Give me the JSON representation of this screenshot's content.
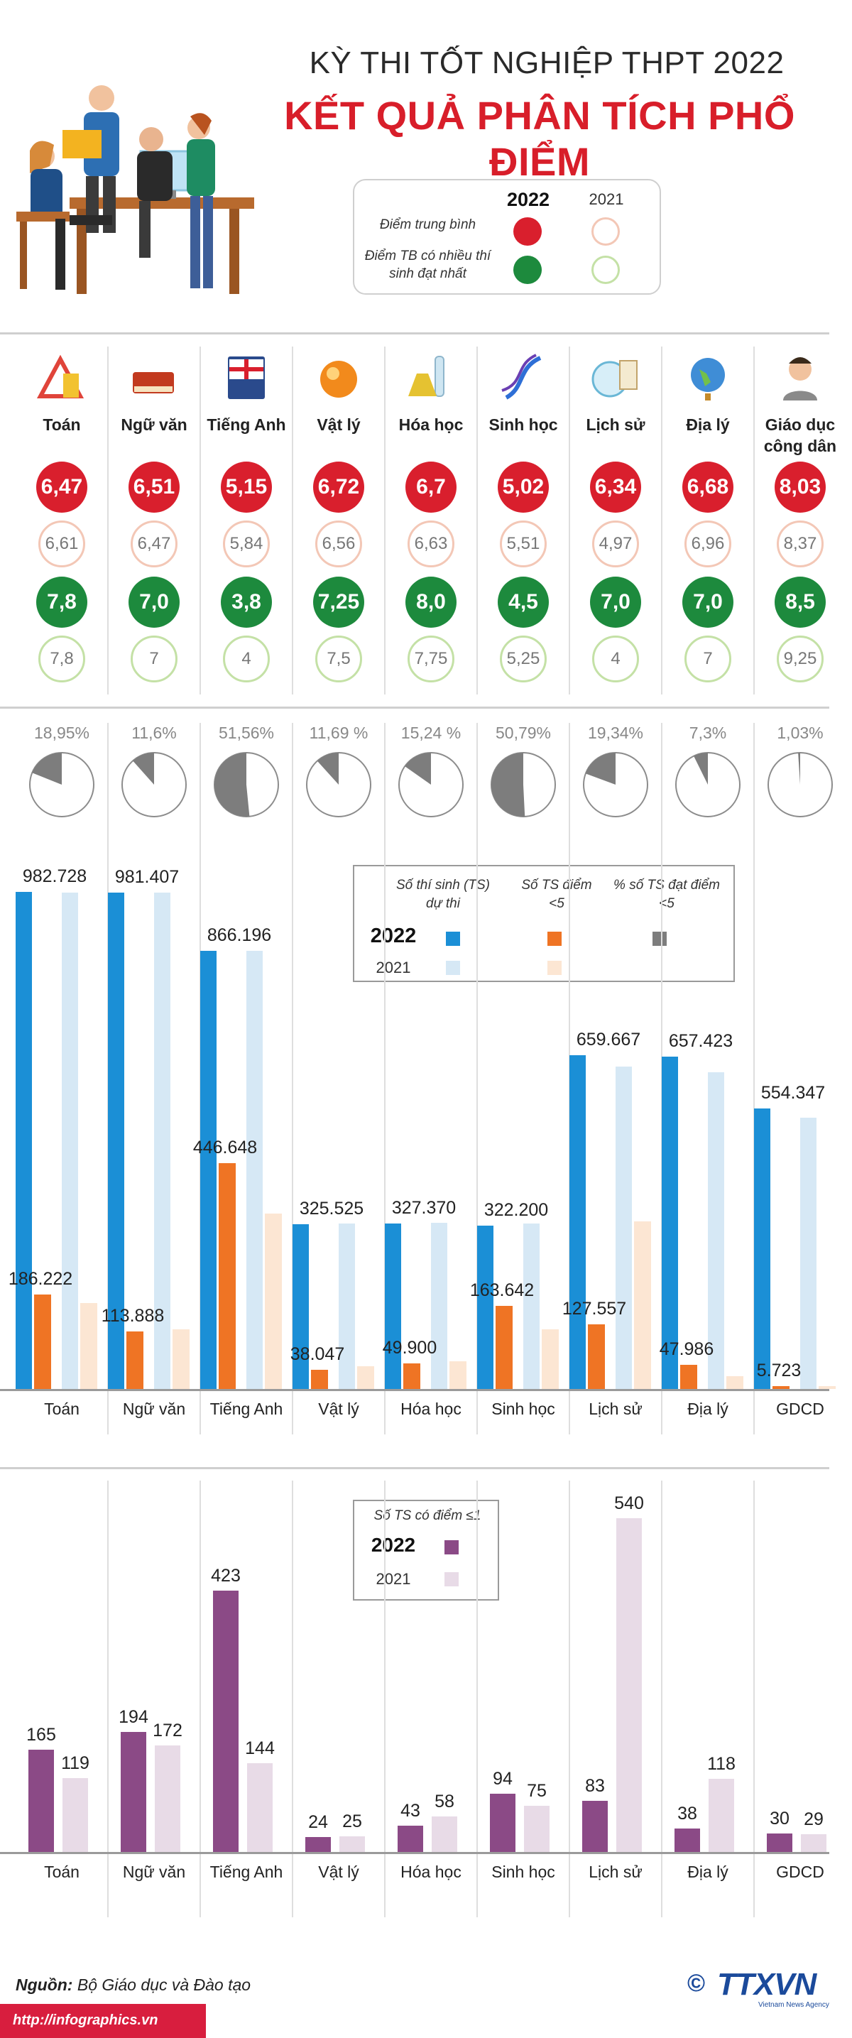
{
  "header": {
    "title_line1": "KỲ THI TỐT NGHIỆP THPT 2022",
    "title_line2": "KẾT QUẢ PHÂN TÍCH PHỔ ĐIỂM"
  },
  "legend_top": {
    "year_2022": "2022",
    "year_2021": "2021",
    "row1_label": "Điểm trung bình",
    "row2_label": "Điểm TB có nhiều thí sinh đạt nhất"
  },
  "colors": {
    "red": "#d91f2d",
    "green": "#1d8a3d",
    "blue": "#1b8fd6",
    "lightblue": "#d6e8f5",
    "orange": "#ef7424",
    "lightorange": "#fce6d3",
    "gray": "#7d7d7d",
    "purple": "#8b4a86",
    "lightpurple": "#e8dbe7"
  },
  "subjects": [
    {
      "name": "Toán",
      "icon": "ruler-triangle-icon"
    },
    {
      "name": "Ngữ văn",
      "icon": "book-icon"
    },
    {
      "name": "Tiếng Anh",
      "icon": "english-book-icon"
    },
    {
      "name": "Vật lý",
      "icon": "atom-sphere-icon"
    },
    {
      "name": "Hóa học",
      "icon": "flask-icon"
    },
    {
      "name": "Sinh học",
      "icon": "dna-icon"
    },
    {
      "name": "Lịch sử",
      "icon": "scroll-globe-icon"
    },
    {
      "name": "Địa lý",
      "icon": "globe-icon"
    },
    {
      "name": "Giáo dục công dân",
      "icon": "person-icon"
    }
  ],
  "avg_2022": [
    "6,47",
    "6,51",
    "5,15",
    "6,72",
    "6,7",
    "5,02",
    "6,34",
    "6,68",
    "8,03"
  ],
  "avg_2021": [
    "6,61",
    "6,47",
    "5,84",
    "6,56",
    "6,63",
    "5,51",
    "4,97",
    "6,96",
    "8,37"
  ],
  "mode_2022": [
    "7,8",
    "7,0",
    "3,8",
    "7,25",
    "8,0",
    "4,5",
    "7,0",
    "7,0",
    "8,5"
  ],
  "mode_2021": [
    "7,8",
    "7",
    "4",
    "7,5",
    "7,75",
    "5,25",
    "4",
    "7",
    "9,25"
  ],
  "pie_labels": [
    "18,95%",
    "11,6%",
    "51,56%",
    "11,69 %",
    "15,24 %",
    "50,79%",
    "19,34%",
    "7,3%",
    "1,03%"
  ],
  "pie_values": [
    18.95,
    11.6,
    51.56,
    11.69,
    15.24,
    50.79,
    19.34,
    7.3,
    1.03
  ],
  "legend_mid": {
    "col1": "Số thí sinh (TS) dự thi",
    "col2": "Số TS điểm <5",
    "col3": "% số TS đạt điểm <5",
    "year_2022": "2022",
    "year_2021": "2021"
  },
  "legend_bottom": {
    "title": "Số TS có điểm ≤1",
    "year_2022": "2022",
    "year_2021": "2021"
  },
  "chart_data": [
    {
      "type": "bar",
      "categories": [
        "Toán",
        "Ngữ văn",
        "Tiếng Anh",
        "Vật lý",
        "Hóa học",
        "Sinh học",
        "Lịch sử",
        "Địa lý",
        "GDCD"
      ],
      "series": [
        {
          "name": "Số thí sinh (TS) dự thi 2022",
          "values": [
            982728,
            981407,
            866196,
            325525,
            327370,
            322200,
            659667,
            657423,
            554347
          ],
          "labels": [
            "982.728",
            "981.407",
            "866.196",
            "325.525",
            "327.370",
            "322.200",
            "659.667",
            "657.423",
            "554.347"
          ]
        },
        {
          "name": "Số thí sinh (TS) dự thi 2021",
          "values": [
            982000,
            981000,
            866000,
            327000,
            328000,
            327000,
            637000,
            626000,
            536000
          ]
        },
        {
          "name": "Số TS điểm <5 2022",
          "values": [
            186222,
            113888,
            446648,
            38047,
            49900,
            163642,
            127557,
            47986,
            5723
          ],
          "labels": [
            "186.222",
            "113.888",
            "446.648",
            "38.047",
            "49.900",
            "163.642",
            "127.557",
            "47.986",
            "5.723"
          ]
        },
        {
          "name": "Số TS điểm <5 2021",
          "values": [
            170000,
            118000,
            347000,
            45000,
            55000,
            118000,
            332000,
            25000,
            5000
          ]
        }
      ],
      "ylim": [
        0,
        1000000
      ]
    },
    {
      "type": "bar",
      "title": "Số TS có điểm ≤1",
      "categories": [
        "Toán",
        "Ngữ văn",
        "Tiếng Anh",
        "Vật lý",
        "Hóa học",
        "Sinh học",
        "Lịch sử",
        "Địa lý",
        "GDCD"
      ],
      "series": [
        {
          "name": "2022",
          "values": [
            165,
            194,
            423,
            24,
            43,
            94,
            83,
            38,
            30
          ]
        },
        {
          "name": "2021",
          "values": [
            119,
            172,
            144,
            25,
            58,
            75,
            540,
            118,
            29
          ]
        }
      ],
      "ylim": [
        0,
        560
      ]
    }
  ],
  "x_labels": [
    "Toán",
    "Ngữ văn",
    "Tiếng Anh",
    "Vật lý",
    "Hóa học",
    "Sinh học",
    "Lịch sử",
    "Địa lý",
    "GDCD"
  ],
  "footer": {
    "source_label": "Nguồn:",
    "source_text": " Bộ Giáo dục và Đào tạo",
    "url": "http://infographics.vn",
    "logo_text": "TTXVN",
    "logo_sub": "Vietnam News Agency",
    "copyright": "©"
  }
}
